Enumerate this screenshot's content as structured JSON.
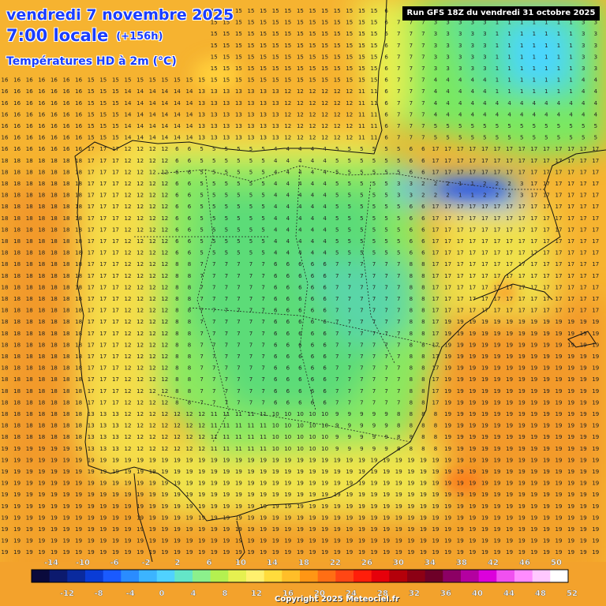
{
  "header": {
    "date": "vendredi 7 novembre 2025",
    "time": "7:00 locale",
    "lead_time": "(+156h)",
    "parameter": "Températures HD à 2m (°C)"
  },
  "run_info": "Run GFS 18Z du vendredi 31 octobre 2025",
  "copyright": "Copyright 2025 Meteociel.fr",
  "legend": {
    "top_labels": [
      "-14",
      "-10",
      "-6",
      "-2",
      "2",
      "6",
      "10",
      "14",
      "18",
      "22",
      "26",
      "30",
      "34",
      "38",
      "42",
      "46",
      "50"
    ],
    "bottom_labels": [
      "-12",
      "-8",
      "-4",
      "0",
      "4",
      "8",
      "12",
      "16",
      "20",
      "24",
      "28",
      "32",
      "36",
      "40",
      "44",
      "48",
      "52"
    ],
    "colors": [
      "#0a0a3c",
      "#0c1a6e",
      "#0a2a9e",
      "#0a3cd6",
      "#1a5aff",
      "#2a8cff",
      "#3cb4ff",
      "#50d2ff",
      "#64e6c8",
      "#8cf08c",
      "#b4f050",
      "#e6f050",
      "#fff06e",
      "#ffdc3c",
      "#ffbe28",
      "#ff9614",
      "#ff6e14",
      "#ff4614",
      "#ff1e0a",
      "#e6000a",
      "#b4000a",
      "#8c0014",
      "#6e0028",
      "#8c0064",
      "#b400a0",
      "#dc00dc",
      "#f050f0",
      "#ff8cff",
      "#ffc8ff",
      "#ffffff"
    ]
  },
  "temperature_grid_note": "Grid of 2m temperature values in °C",
  "temperature_regions": {
    "atlantic_north": 16,
    "cantabrian_coast": 14,
    "pyrenees": 1,
    "meseta_north": 4,
    "meseta_central": 6,
    "portugal_coast": 18,
    "andalusia": 12,
    "mediterranean": 19,
    "france_west": 6,
    "france_central": 3
  }
}
